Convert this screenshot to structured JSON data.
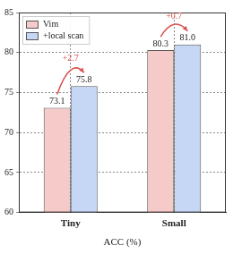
{
  "chart_data": {
    "type": "bar",
    "categories": [
      "Tiny",
      "Small"
    ],
    "series": [
      {
        "name": "Vim",
        "color": "#f7caca",
        "values": [
          73.1,
          80.3
        ],
        "value_labels": [
          "73.1",
          "80.3"
        ]
      },
      {
        "name": "+local scan",
        "color": "#c5d7f5",
        "values": [
          75.8,
          81.0
        ],
        "value_labels": [
          "75.8",
          "81.0"
        ]
      }
    ],
    "x_label": "ACC (%)",
    "ylim": [
      60,
      85
    ],
    "yticks": [
      60,
      65,
      70,
      75,
      80,
      85
    ],
    "grid": true,
    "legend": "upper left",
    "data_labels": true,
    "annotations": [
      "+2.7",
      "+0.7"
    ]
  }
}
